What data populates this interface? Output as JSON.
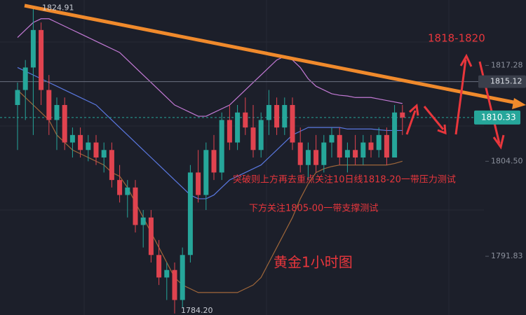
{
  "chart_data": {
    "type": "candlestick",
    "title": "黄金1小时图",
    "annotations": [
      "突破则上方再去重点关注10日线1818-20一带压力测试",
      "下方关注1805-00一带支撑测试",
      "1818-1820"
    ],
    "ylim": [
      1784,
      1826
    ],
    "yticks": [
      1817.28,
      {
        "value": 1804.5,
        "label": "1804.50"
      },
      1791.83
    ],
    "marker_price": 1815.12,
    "last_price": 1810.33,
    "high_label": 1824.91,
    "low_label": {
      "value": 1784.2,
      "label": "1784.20"
    },
    "up_color": "#26a69a",
    "down_color": "#e0434f",
    "candles": [
      [
        1812,
        1815,
        1806,
        1814
      ],
      [
        1814,
        1818,
        1810,
        1817
      ],
      [
        1817,
        1824.91,
        1808,
        1822
      ],
      [
        1822,
        1823,
        1812,
        1814
      ],
      [
        1814,
        1816,
        1808,
        1810
      ],
      [
        1810,
        1813,
        1806,
        1812
      ],
      [
        1812,
        1813,
        1806,
        1807
      ],
      [
        1807,
        1809,
        1805,
        1808
      ],
      [
        1808,
        1809,
        1805,
        1806
      ],
      [
        1806,
        1808,
        1804.5,
        1807
      ],
      [
        1807,
        1808,
        1804,
        1805
      ],
      [
        1805,
        1807,
        1803,
        1806
      ],
      [
        1806,
        1807,
        1801,
        1802
      ],
      [
        1802,
        1804,
        1799,
        1800
      ],
      [
        1800,
        1802,
        1797,
        1801
      ],
      [
        1801,
        1802,
        1795,
        1796
      ],
      [
        1796,
        1798,
        1793,
        1797
      ],
      [
        1797,
        1798,
        1791,
        1792
      ],
      [
        1792,
        1794,
        1788,
        1789
      ],
      [
        1789,
        1791,
        1786,
        1790
      ],
      [
        1790,
        1791,
        1784.2,
        1786
      ],
      [
        1786,
        1793,
        1785,
        1792
      ],
      [
        1792,
        1804,
        1791,
        1803
      ],
      [
        1803,
        1806,
        1799,
        1800
      ],
      [
        1800,
        1807,
        1798,
        1806
      ],
      [
        1806,
        1808,
        1802,
        1803
      ],
      [
        1803,
        1811,
        1802,
        1810
      ],
      [
        1810,
        1812,
        1806,
        1807
      ],
      [
        1807,
        1812,
        1806,
        1811
      ],
      [
        1811,
        1813,
        1808,
        1809
      ],
      [
        1809,
        1812,
        1805,
        1806
      ],
      [
        1806,
        1811,
        1805,
        1810
      ],
      [
        1810,
        1814,
        1808,
        1812
      ],
      [
        1812,
        1813,
        1808,
        1809
      ],
      [
        1809,
        1813,
        1808,
        1812
      ],
      [
        1812,
        1813,
        1806,
        1807
      ],
      [
        1807,
        1809,
        1803,
        1804
      ],
      [
        1804,
        1807,
        1802,
        1806
      ],
      [
        1806,
        1808,
        1803,
        1804
      ],
      [
        1804,
        1808,
        1803,
        1807
      ],
      [
        1807,
        1809,
        1805,
        1808
      ],
      [
        1808,
        1809,
        1804,
        1805
      ],
      [
        1805,
        1807,
        1803,
        1806
      ],
      [
        1806,
        1808,
        1804,
        1805
      ],
      [
        1805,
        1808,
        1804,
        1807
      ],
      [
        1807,
        1808,
        1805,
        1806
      ],
      [
        1806,
        1809,
        1805,
        1808
      ],
      [
        1808,
        1809,
        1804,
        1805
      ],
      [
        1805,
        1812,
        1805,
        1811
      ],
      [
        1811,
        1812,
        1808,
        1810.33
      ]
    ],
    "lines": [
      {
        "color": "#c47ad6",
        "values": [
          1821,
          1822,
          1823,
          1823.5,
          1823.5,
          1823,
          1822.5,
          1822,
          1821.5,
          1821,
          1820.5,
          1820,
          1819.5,
          1819,
          1818,
          1817,
          1816,
          1815,
          1814,
          1813,
          1812,
          1811.5,
          1811,
          1810.5,
          1810.5,
          1811,
          1811.5,
          1812,
          1813,
          1814,
          1815,
          1816,
          1817,
          1818,
          1818.5,
          1818,
          1817,
          1815.5,
          1814.5,
          1814,
          1813.5,
          1813.3,
          1813.2,
          1813,
          1813,
          1813,
          1812.8,
          1812.6,
          1812.4,
          1812.2
        ]
      },
      {
        "color": "#5a78e0",
        "values": [
          1817,
          1816.5,
          1816,
          1815.5,
          1815,
          1814.5,
          1814,
          1813.5,
          1813,
          1812.5,
          1812,
          1811,
          1810,
          1809,
          1808,
          1807,
          1806,
          1805,
          1804,
          1803,
          1802,
          1801,
          1800,
          1799.5,
          1799.5,
          1800,
          1801,
          1802,
          1802.5,
          1803,
          1803.5,
          1804,
          1805,
          1806,
          1807,
          1808,
          1808.5,
          1809,
          1809,
          1809,
          1809,
          1809,
          1808.8,
          1808.8,
          1808.8,
          1808.8,
          1808.7,
          1808.6,
          1808.6,
          1808.6
        ]
      },
      {
        "color": "#a0673a",
        "values": [
          1814,
          1813,
          1812,
          1811,
          1810,
          1808,
          1807,
          1806,
          1805.5,
          1805,
          1804.5,
          1804,
          1803,
          1802.5,
          1801,
          1799,
          1797,
          1795,
          1793,
          1791,
          1789,
          1788,
          1787.5,
          1787,
          1787,
          1787,
          1787,
          1787,
          1787,
          1787.5,
          1788,
          1789,
          1791,
          1793,
          1795,
          1797,
          1799.5,
          1801.5,
          1803,
          1803.5,
          1803.8,
          1804,
          1804,
          1804,
          1804,
          1804,
          1804,
          1804,
          1804.2,
          1804.5
        ]
      }
    ]
  }
}
